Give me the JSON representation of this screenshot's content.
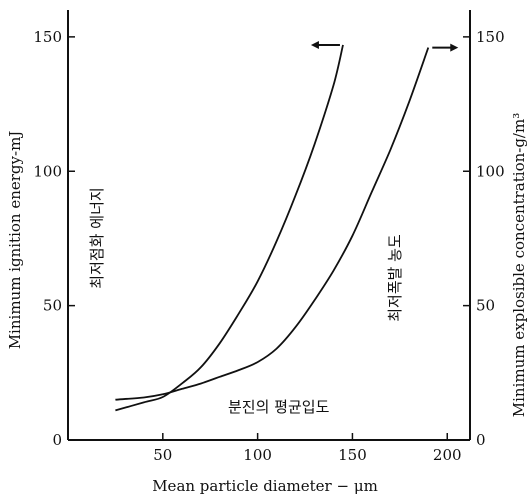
{
  "chart_data": {
    "type": "line",
    "xlabel": "Mean particle diameter − μm",
    "ylabel_left": "Minimum ignition energy-mJ",
    "ylabel_right": "Minimum explosible concentration-g/m³",
    "xlim": [
      0,
      212
    ],
    "ylim_left": [
      0,
      160
    ],
    "ylim_right": [
      0,
      160
    ],
    "xticks": [
      50,
      100,
      150,
      200
    ],
    "yticks_left": [
      0,
      50,
      100,
      150
    ],
    "yticks_right": [
      0,
      50,
      100,
      150
    ],
    "grid": false,
    "annotations": {
      "ignition_energy": "최저점화 에너지",
      "explosible_concentration": "최저폭발 농도",
      "mean_particle_size": "분진의 평균입도"
    },
    "series": [
      {
        "axis": "left",
        "x": [
          25,
          40,
          50,
          60,
          70,
          80,
          90,
          100,
          110,
          120,
          130,
          140,
          145
        ],
        "y": [
          11,
          14,
          16,
          21,
          27,
          36,
          47,
          59,
          74,
          91,
          110,
          132,
          147
        ]
      },
      {
        "axis": "right",
        "x": [
          25,
          40,
          50,
          60,
          70,
          80,
          90,
          100,
          110,
          120,
          130,
          140,
          150,
          160,
          170,
          180,
          190
        ],
        "y": [
          15,
          15.8,
          17,
          19,
          21,
          23.5,
          26,
          29,
          34,
          42,
          52,
          63,
          76,
          92,
          108,
          126,
          146
        ]
      }
    ]
  }
}
